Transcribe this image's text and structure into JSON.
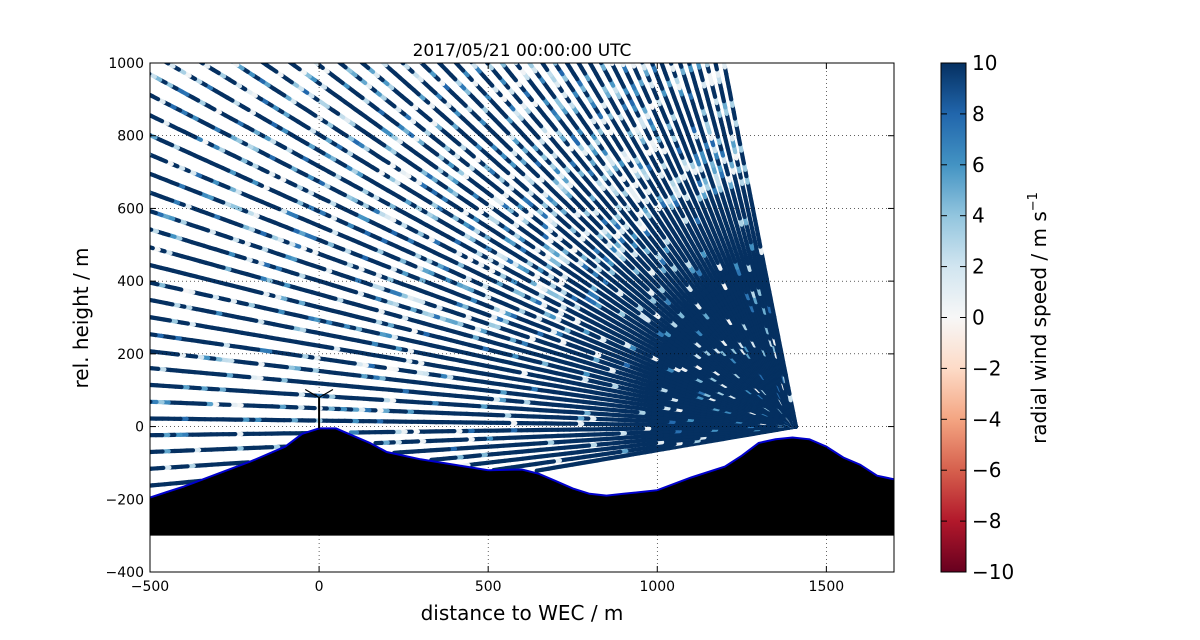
{
  "chart_data": {
    "type": "heatmap",
    "title": "2017/05/21 00:00:00 UTC",
    "xlabel": "distance to WEC / m",
    "ylabel": "rel. height / m",
    "xlim": [
      -500,
      1700
    ],
    "ylim": [
      -400,
      1000
    ],
    "x_ticks": [
      -500,
      0,
      500,
      1000,
      1500
    ],
    "y_ticks": [
      -400,
      -200,
      0,
      200,
      400,
      600,
      800,
      1000
    ],
    "x_tick_labels": [
      "−500",
      "0",
      "500",
      "1000",
      "1500"
    ],
    "y_tick_labels": [
      "−400",
      "−200",
      "0",
      "200",
      "400",
      "600",
      "800",
      "1000"
    ],
    "grid": true,
    "colorbar": {
      "label": "radial wind speed / m s",
      "label_superscript": "−1",
      "range": [
        -10,
        10
      ],
      "ticks": [
        10,
        8,
        6,
        4,
        2,
        0,
        -2,
        -4,
        -6,
        -8,
        -10
      ],
      "tick_labels": [
        "10",
        "8",
        "6",
        "4",
        "2",
        "0",
        "−2",
        "−4",
        "−6",
        "−8",
        "−10"
      ],
      "colormap": "RdBu",
      "colors": [
        "#67001f",
        "#b2182b",
        "#d6604d",
        "#f4a582",
        "#fddbc7",
        "#f7f7f7",
        "#d1e5f0",
        "#92c5de",
        "#4393c3",
        "#2166ac",
        "#053061"
      ]
    },
    "lidar": {
      "position": [
        1410,
        0
      ],
      "min_elevation_deg": -9,
      "max_elevation_deg": 78,
      "min_azimuth_x_at_top": 1610
    },
    "terrain": {
      "x": [
        -500,
        -450,
        -400,
        -300,
        -200,
        -100,
        -50,
        0,
        50,
        100,
        150,
        200,
        300,
        400,
        500,
        600,
        650,
        700,
        750,
        800,
        850,
        900,
        1000,
        1100,
        1200,
        1250,
        1300,
        1350,
        1400,
        1450,
        1500,
        1550,
        1600,
        1650,
        1700
      ],
      "y": [
        -195,
        -180,
        -165,
        -130,
        -95,
        -55,
        -20,
        -5,
        -5,
        -25,
        -45,
        -70,
        -90,
        -105,
        -120,
        -118,
        -130,
        -150,
        -170,
        -185,
        -190,
        -185,
        -175,
        -140,
        -110,
        -80,
        -45,
        -35,
        -30,
        -35,
        -55,
        -85,
        -105,
        -135,
        -145
      ],
      "base": -300,
      "fill_color": "#000000",
      "outline_color": "#0000cc"
    },
    "wec": {
      "x": 0,
      "hub_height": 80
    }
  }
}
